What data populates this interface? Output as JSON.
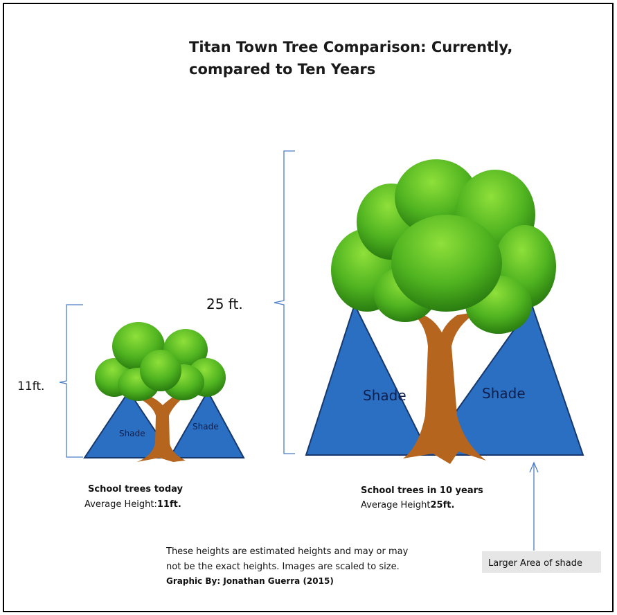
{
  "title": [
    "Titan Town Tree Comparison: Currently,",
    "compared to Ten Years"
  ],
  "trees": [
    {
      "height_label": "11ft.",
      "shade_labels": [
        "Shade",
        "Shade"
      ],
      "caption": "School trees today",
      "average_label": "Average Height:",
      "average_value": "11ft."
    },
    {
      "height_label": "25 ft.",
      "shade_labels": [
        "Shade",
        "Shade"
      ],
      "caption": "School trees in 10 years",
      "average_label": "Average Height",
      "average_value": "25ft."
    }
  ],
  "callout": "Larger Area of shade",
  "note": {
    "lines": [
      "These heights are estimated heights and may or may",
      "not be the exact heights. Images are scaled to size."
    ],
    "credit": "Graphic By: Jonathan Guerra (2015)"
  }
}
